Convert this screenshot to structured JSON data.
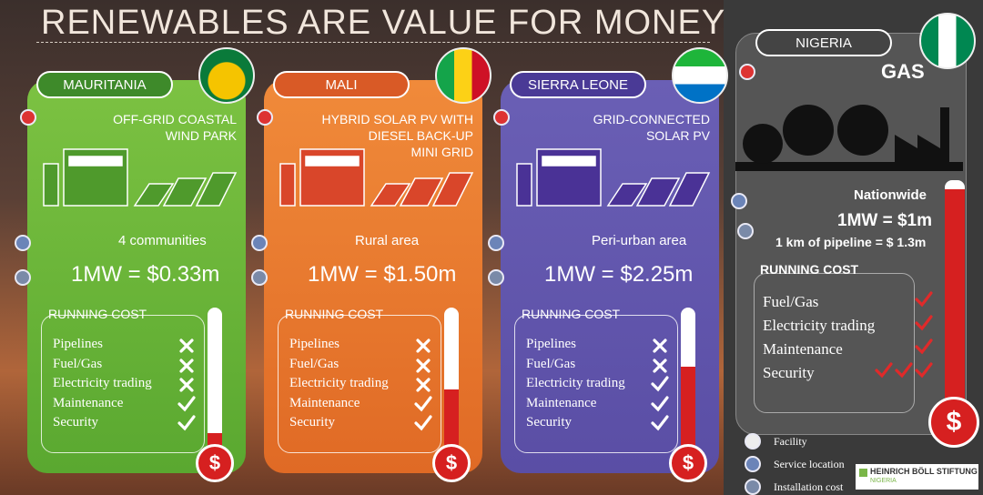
{
  "title": "RENEWABLES ARE VALUE FOR MONEY",
  "panels": [
    {
      "country": "MAURITANIA",
      "description": [
        "OFF-GRID COASTAL",
        "WIND PARK"
      ],
      "location": "4 communities",
      "cost": "1MW = $0.33m",
      "running_cost_label": "RUNNING COST",
      "thermometer_symbol": "$",
      "items": [
        {
          "label": "Pipelines",
          "checks": 0
        },
        {
          "label": "Fuel/Gas",
          "checks": 0
        },
        {
          "label": "Electricity trading",
          "checks": 0
        },
        {
          "label": "Maintenance",
          "checks": 1
        },
        {
          "label": "Security",
          "checks": 1
        }
      ]
    },
    {
      "country": "MALI",
      "description": [
        "HYBRID SOLAR PV WITH",
        "DIESEL BACK-UP",
        "MINI GRID"
      ],
      "location": "Rural area",
      "cost": "1MW = $1.50m",
      "running_cost_label": "RUNNING COST",
      "thermometer_symbol": "$",
      "items": [
        {
          "label": "Pipelines",
          "checks": 0
        },
        {
          "label": "Fuel/Gas",
          "checks": 0
        },
        {
          "label": "Electricity trading",
          "checks": 0
        },
        {
          "label": "Maintenance",
          "checks": 1
        },
        {
          "label": "Security",
          "checks": 1
        }
      ]
    },
    {
      "country": "SIERRA LEONE",
      "description": [
        "GRID-CONNECTED",
        "SOLAR PV"
      ],
      "location": "Peri-urban area",
      "cost": "1MW = $2.25m",
      "running_cost_label": "RUNNING COST",
      "thermometer_symbol": "$",
      "items": [
        {
          "label": "Pipelines",
          "checks": 0
        },
        {
          "label": "Fuel/Gas",
          "checks": 0
        },
        {
          "label": "Electricity trading",
          "checks": 1
        },
        {
          "label": "Maintenance",
          "checks": 1
        },
        {
          "label": "Security",
          "checks": 1
        }
      ]
    }
  ],
  "nigeria": {
    "country": "NIGERIA",
    "fuel": "GAS",
    "location": "Nationwide",
    "cost": "1MW = $1m",
    "pipeline_cost": "1 km of pipeline = $ 1.3m",
    "running_cost_label": "RUNNING COST",
    "thermometer_symbol": "$",
    "items": [
      {
        "label": "Fuel/Gas",
        "checks": 1
      },
      {
        "label": "Electricity trading",
        "checks": 1
      },
      {
        "label": "Maintenance",
        "checks": 1
      },
      {
        "label": "Security",
        "checks": 3
      }
    ]
  },
  "legend": [
    "Facility",
    "Service location",
    "Installation cost"
  ],
  "logo": {
    "name": "HEINRICH BÖLL STIFTUNG",
    "country": "NIGERIA"
  }
}
